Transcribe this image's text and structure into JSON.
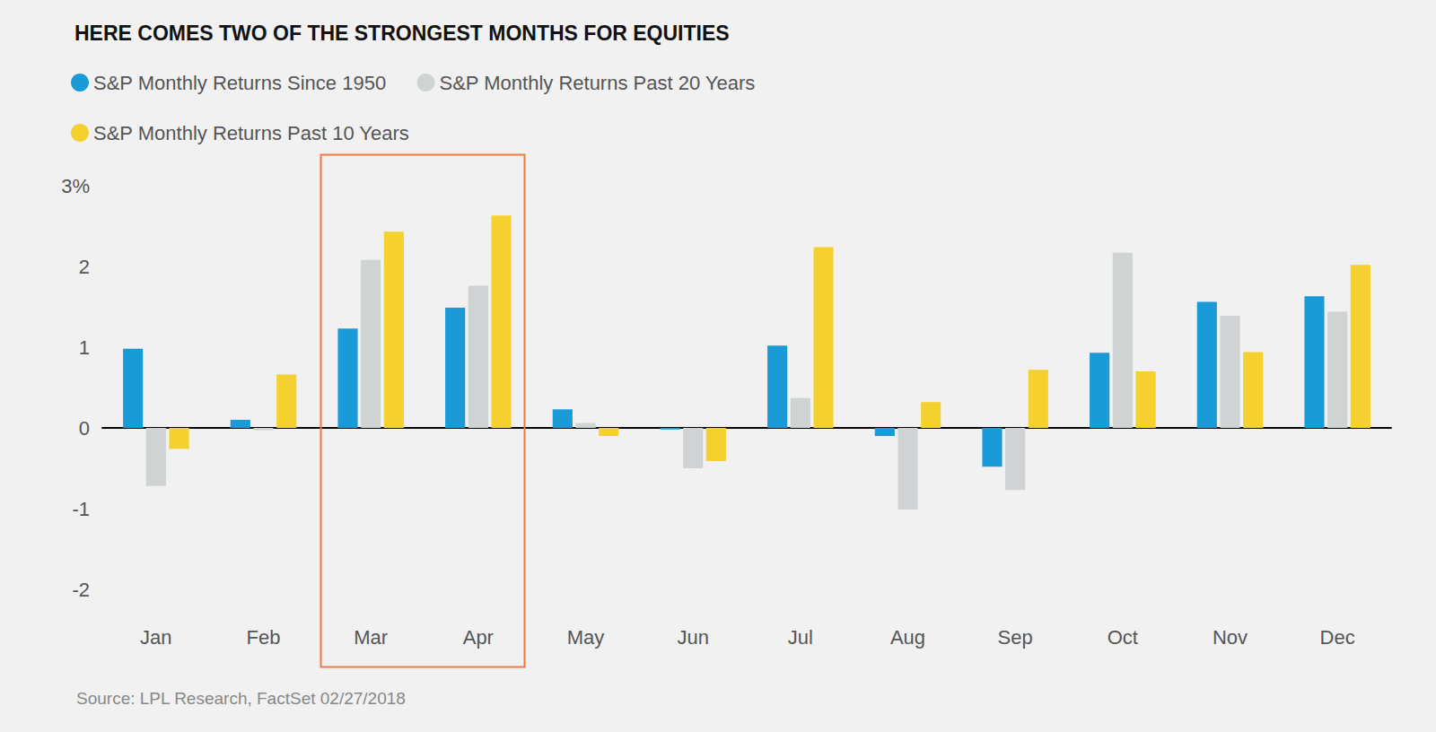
{
  "chart_data": {
    "type": "bar",
    "title": "HERE COMES TWO OF THE STRONGEST MONTHS FOR EQUITIES",
    "source": "Source: LPL Research, FactSet 02/27/2018",
    "categories": [
      "Jan",
      "Feb",
      "Mar",
      "Apr",
      "May",
      "Jun",
      "Jul",
      "Aug",
      "Sep",
      "Oct",
      "Nov",
      "Dec"
    ],
    "series": [
      {
        "name": "S&P Monthly Returns Since 1950",
        "color": "#1a9bd7",
        "values": [
          0.98,
          0.1,
          1.23,
          1.49,
          0.23,
          -0.02,
          1.02,
          -0.1,
          -0.48,
          0.93,
          1.56,
          1.63
        ]
      },
      {
        "name": "S&P Monthly Returns Past 20 Years",
        "color": "#d0d3d4",
        "values": [
          -0.72,
          -0.03,
          2.08,
          1.76,
          0.06,
          -0.5,
          0.37,
          -1.01,
          -0.77,
          2.17,
          1.39,
          1.44
        ]
      },
      {
        "name": "S&P Monthly Returns Past 10 Years",
        "color": "#f5d130",
        "values": [
          -0.26,
          0.66,
          2.43,
          2.63,
          -0.1,
          -0.41,
          2.24,
          0.32,
          0.72,
          0.7,
          0.94,
          2.02
        ]
      }
    ],
    "ylim": [
      -2,
      3
    ],
    "yticks": [
      -2,
      -1,
      0,
      1,
      2,
      {
        "value": 3,
        "label": "3%"
      }
    ],
    "grid": false,
    "legend": "top-left"
  }
}
